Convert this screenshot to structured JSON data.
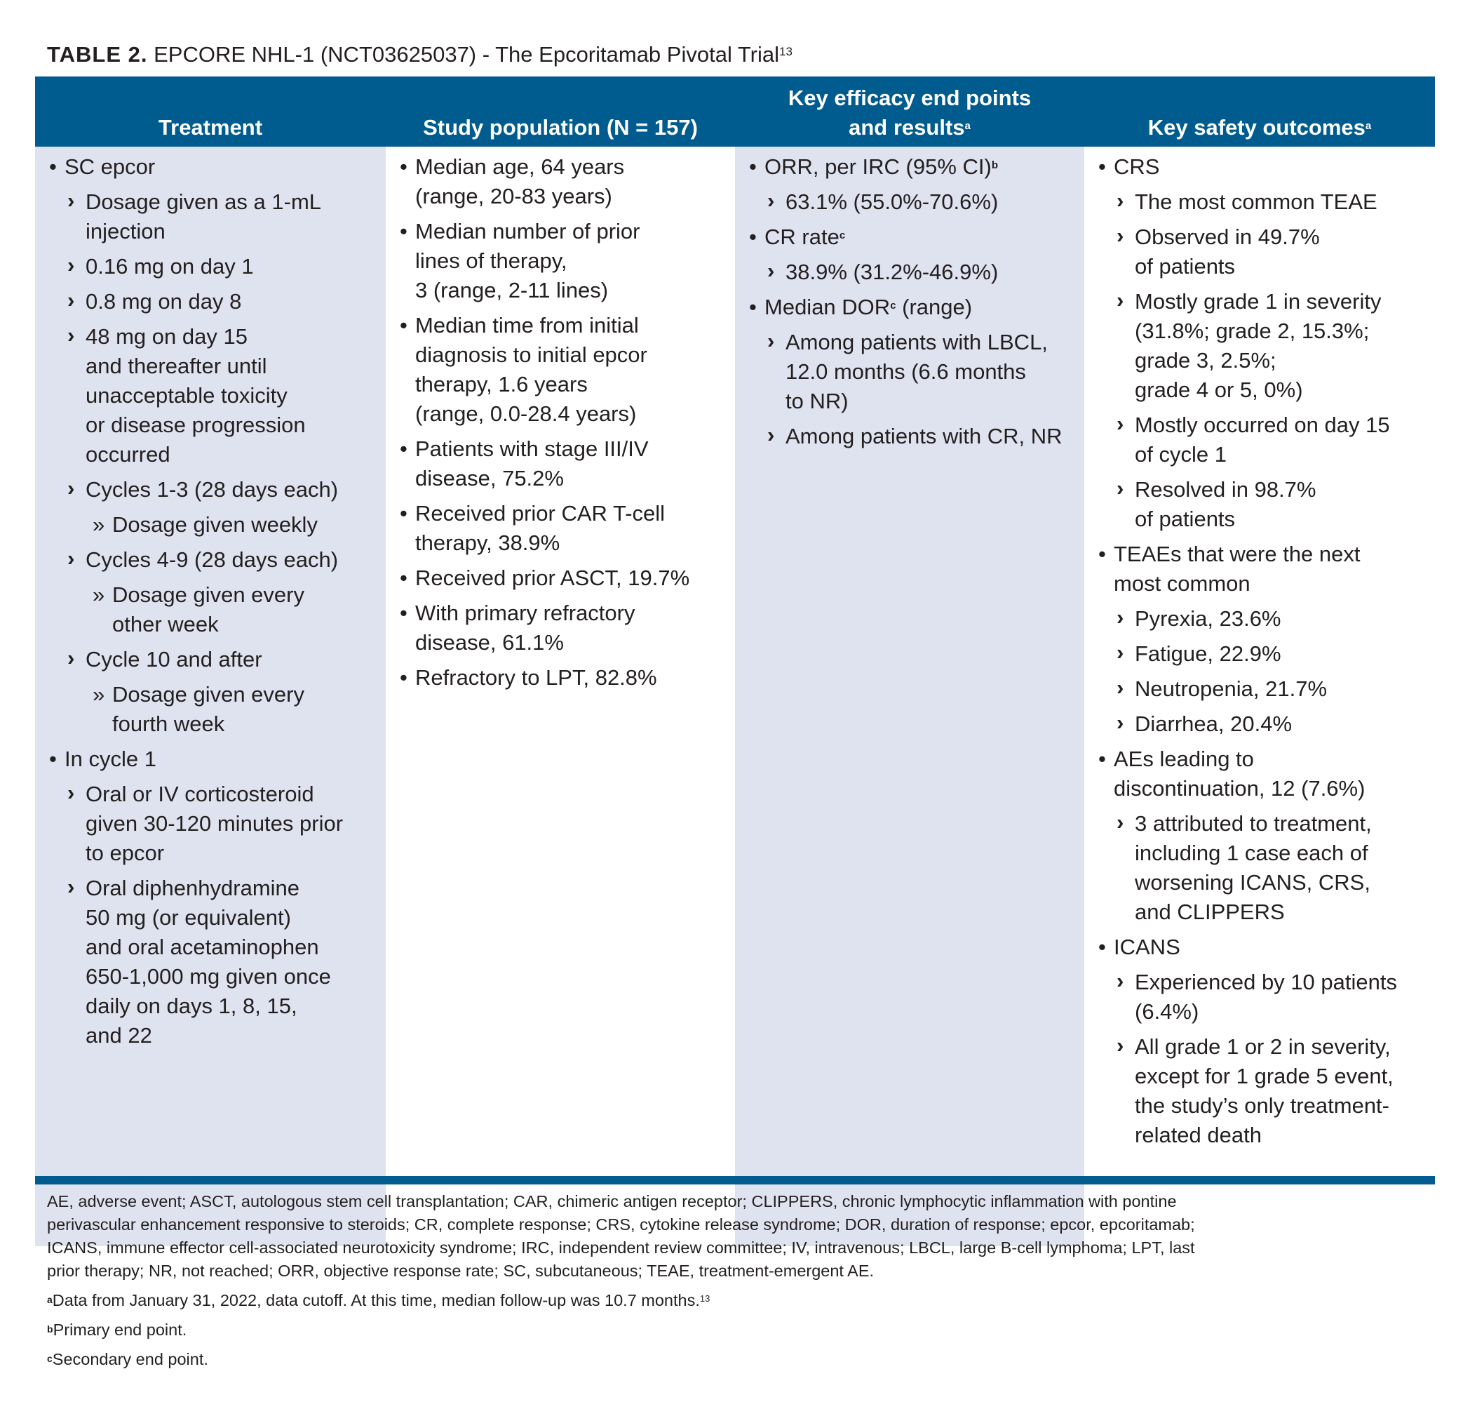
{
  "title": {
    "label": "TABLE 2.",
    "text": "EPCORE NHL-1 (NCT03625037) - The Epcoritamab Pivotal Trial",
    "ref": "13"
  },
  "headers": {
    "treatment": "Treatment",
    "population": "Study population (N = 157)",
    "efficacy_line1": "Key efficacy end points",
    "efficacy_line2": "and results",
    "efficacy_sup": "a",
    "safety": "Key safety outcomes",
    "safety_sup": "a"
  },
  "treatment": {
    "sc_epcor": "SC epcor",
    "dosage_1": "Dosage given as a 1-mL",
    "dosage_2": "injection",
    "day1": "0.16 mg on day 1",
    "day8": "0.8 mg on day 8",
    "day15_1": "48 mg on day 15",
    "day15_2": "and thereafter until",
    "day15_3": "unacceptable toxicity",
    "day15_4": "or disease progression",
    "day15_5": "occurred",
    "cycles13": "Cycles 1-3 (28 days each)",
    "weekly": "Dosage given weekly",
    "cycles49": "Cycles 4-9 (28 days each)",
    "other_1": "Dosage given every",
    "other_2": "other week",
    "cycle10": "Cycle 10 and after",
    "fourth_1": "Dosage given every",
    "fourth_2": "fourth week",
    "in_cycle1": "In cycle 1",
    "cortico_1": "Oral or IV corticosteroid",
    "cortico_2": "given 30-120 minutes prior",
    "cortico_3": "to epcor",
    "diphen_1": "Oral diphenhydramine",
    "diphen_2": "50 mg (or equivalent)",
    "diphen_3": "and oral acetaminophen",
    "diphen_4": "650-1,000 mg given once",
    "diphen_5": "daily on days 1, 8, 15,",
    "diphen_6": "and 22"
  },
  "population": {
    "age_1": "Median age, 64 years",
    "age_2": "(range, 20-83 years)",
    "lines_1": "Median number of prior",
    "lines_2": "lines of therapy,",
    "lines_3": "3 (range, 2-11 lines)",
    "time_1": "Median time from initial",
    "time_2": "diagnosis to initial epcor",
    "time_3": "therapy, 1.6 years",
    "time_4": "(range, 0.0-28.4 years)",
    "stage_1": "Patients with stage III/IV",
    "stage_2": "disease, 75.2%",
    "car_1": "Received prior CAR T-cell",
    "car_2": "therapy, 38.9%",
    "asct": "Received prior ASCT, 19.7%",
    "refr_1": "With primary refractory",
    "refr_2": "disease, 61.1%",
    "lpt": "Refractory to LPT, 82.8%"
  },
  "efficacy": {
    "orr": "ORR, per IRC (95% CI)",
    "orr_sup": "b",
    "orr_val": "63.1% (55.0%-70.6%)",
    "cr": "CR rate",
    "cr_sup": "c",
    "cr_val": "38.9% (31.2%-46.9%)",
    "dor_a": "Median DOR",
    "dor_sup": "c",
    "dor_b": " (range)",
    "lbcl_1": "Among patients with LBCL,",
    "lbcl_2": "12.0 months (6.6 months",
    "lbcl_3": "to NR)",
    "crpat": "Among patients with CR, NR"
  },
  "safety": {
    "crs": "CRS",
    "teae": "The most common TEAE",
    "obs_1": "Observed in 49.7%",
    "obs_2": "of patients",
    "grade_1": "Mostly grade 1 in severity",
    "grade_2": "(31.8%; grade 2, 15.3%;",
    "grade_3": "grade 3, 2.5%;",
    "grade_4": "grade 4 or 5, 0%)",
    "occ_1": "Mostly occurred on day 15",
    "occ_2": "of cycle 1",
    "res_1": "Resolved in 98.7%",
    "res_2": "of patients",
    "next_1": "TEAEs that were the next",
    "next_2": "most common",
    "pyrexia": "Pyrexia, 23.6%",
    "fatigue": "Fatigue, 22.9%",
    "neutropenia": "Neutropenia, 21.7%",
    "diarrhea": "Diarrhea, 20.4%",
    "ae_1": "AEs leading to",
    "ae_2": "discontinuation, 12 (7.6%)",
    "attr_1": "3 attributed to treatment,",
    "attr_2": "including 1 case each of",
    "attr_3": "worsening ICANS, CRS,",
    "attr_4": "and CLIPPERS",
    "icans": "ICANS",
    "exp_1": "Experienced by 10 patients",
    "exp_2": "(6.4%)",
    "all_1": "All grade 1 or 2 in severity,",
    "all_2": "except for 1 grade 5 event,",
    "all_3": "the study’s only treatment-",
    "all_4": "related death"
  },
  "footer": {
    "abbrev_1": "AE, adverse event; ASCT, autologous stem cell transplantation; CAR, chimeric antigen receptor; CLIPPERS, chronic lymphocytic inflammation with pontine",
    "abbrev_2": "perivascular enhancement responsive to steroids; CR, complete response; CRS, cytokine release syndrome; DOR, duration of response; epcor, epcoritamab;",
    "abbrev_3": "ICANS, immune effector cell-associated neurotoxicity syndrome; IRC, independent review committee; IV, intravenous; LBCL, large B-cell lymphoma; LPT, last",
    "abbrev_4": "prior therapy; NR, not reached; ORR, objective response rate; SC, subcutaneous; TEAE, treatment-emergent AE.",
    "note_a_mark": "a",
    "note_a": "Data from January 31, 2022, data cutoff. At this time, median follow-up was 10.7 months.",
    "note_a_ref": "13",
    "note_b_mark": "b",
    "note_b": "Primary end point.",
    "note_c_mark": "c",
    "note_c": "Secondary end point."
  }
}
